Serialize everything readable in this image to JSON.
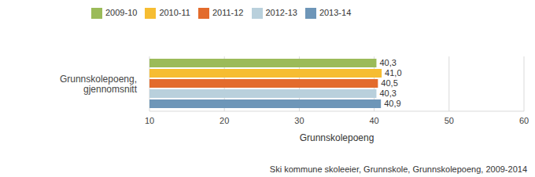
{
  "chart_data": {
    "type": "bar",
    "orientation": "horizontal",
    "categories": [
      "Grunnskolepoeng, gjennomsnitt"
    ],
    "series": [
      {
        "name": "2009-10",
        "color": "#9bbb59",
        "values": [
          40.3
        ],
        "value_labels": [
          "40,3"
        ]
      },
      {
        "name": "2010-11",
        "color": "#f6bd32",
        "values": [
          41.0
        ],
        "value_labels": [
          "41,0"
        ]
      },
      {
        "name": "2011-12",
        "color": "#e36b2c",
        "values": [
          40.5
        ],
        "value_labels": [
          "40,5"
        ]
      },
      {
        "name": "2012-13",
        "color": "#b9d0dc",
        "values": [
          40.3
        ],
        "value_labels": [
          "40,3"
        ]
      },
      {
        "name": "2013-14",
        "color": "#6e96b8",
        "values": [
          40.9
        ],
        "value_labels": [
          "40,9"
        ]
      }
    ],
    "xlabel": "Grunnskolepoeng",
    "xlim": [
      10,
      60
    ],
    "xticks": [
      10,
      20,
      30,
      40,
      50,
      60
    ],
    "grid": true,
    "legend": "top",
    "data_labels": true,
    "annotation": "Ski kommune skoleeier, Grunnskole, Grunnskolepoeng, 2009-2014"
  }
}
